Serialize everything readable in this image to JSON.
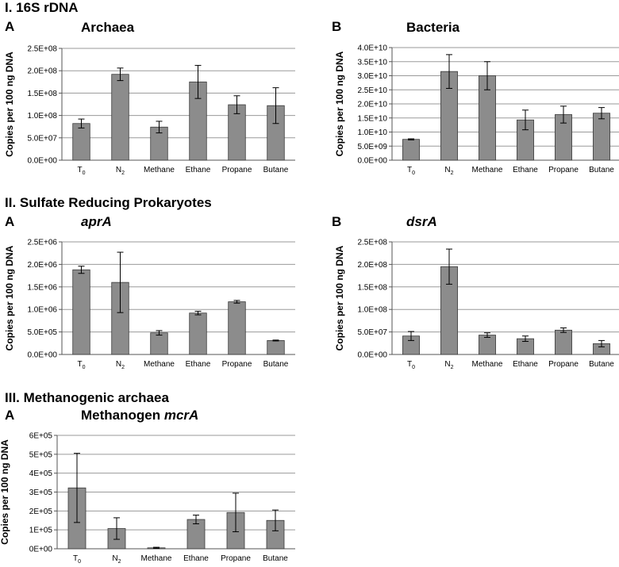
{
  "sections": [
    {
      "title": "I. 16S rDNA"
    },
    {
      "title": "II. Sulfate Reducing Prokaryotes"
    },
    {
      "title": "III. Methanogenic archaea"
    }
  ],
  "chart_data": [
    {
      "type": "bar",
      "panel": "A",
      "title": "Archaea",
      "title_italic": "",
      "ylabel": "Copies per 100 ng DNA",
      "categories": [
        "T0",
        "N2",
        "Methane",
        "Ethane",
        "Propane",
        "Butane"
      ],
      "category_labels": [
        {
          "base": "T",
          "sub": "0"
        },
        {
          "base": "N",
          "sub": "2"
        },
        {
          "base": "Methane",
          "sub": ""
        },
        {
          "base": "Ethane",
          "sub": ""
        },
        {
          "base": "Propane",
          "sub": ""
        },
        {
          "base": "Butane",
          "sub": ""
        }
      ],
      "values": [
        82000000.0,
        192000000.0,
        74000000.0,
        175000000.0,
        124000000.0,
        122000000.0
      ],
      "errors": [
        10000000.0,
        14000000.0,
        13000000.0,
        37000000.0,
        20000000.0,
        40000000.0
      ],
      "ylim": [
        0,
        250000000.0
      ],
      "yticks": [
        0,
        50000000.0,
        100000000.0,
        150000000.0,
        200000000.0,
        250000000.0
      ],
      "ytick_labels": [
        "0.0E+00",
        "5.0E+07",
        "1.0E+08",
        "1.5E+08",
        "2.0E+08",
        "2.5E+08"
      ],
      "grid": true
    },
    {
      "type": "bar",
      "panel": "B",
      "title": "Bacteria",
      "title_italic": "",
      "ylabel": "Copies per 100 ng DNA",
      "categories": [
        "T0",
        "N2",
        "Methane",
        "Ethane",
        "Propane",
        "Butane"
      ],
      "category_labels": [
        {
          "base": "T",
          "sub": "0"
        },
        {
          "base": "N",
          "sub": "2"
        },
        {
          "base": "Methane",
          "sub": ""
        },
        {
          "base": "Ethane",
          "sub": ""
        },
        {
          "base": "Propane",
          "sub": ""
        },
        {
          "base": "Butane",
          "sub": ""
        }
      ],
      "values": [
        7400000000.0,
        31500000000.0,
        30000000000.0,
        14300000000.0,
        16200000000.0,
        16700000000.0
      ],
      "errors": [
        200000000.0,
        6000000000.0,
        5000000000.0,
        3500000000.0,
        3000000000.0,
        2000000000.0
      ],
      "ylim": [
        0,
        40000000000.0
      ],
      "yticks": [
        0,
        5000000000.0,
        10000000000.0,
        15000000000.0,
        20000000000.0,
        25000000000.0,
        30000000000.0,
        35000000000.0,
        40000000000.0
      ],
      "ytick_labels": [
        "0.0E+00",
        "5.0E+09",
        "1.0E+10",
        "1.5E+10",
        "2.0E+10",
        "2.5E+10",
        "3.0E+10",
        "3.5E+10",
        "4.0E+10"
      ],
      "grid": true
    },
    {
      "type": "bar",
      "panel": "A",
      "title": "",
      "title_italic": "aprA",
      "ylabel": "Copies per 100 ng DNA",
      "categories": [
        "T0",
        "N2",
        "Methane",
        "Ethane",
        "Propane",
        "Butane"
      ],
      "category_labels": [
        {
          "base": "T",
          "sub": "0"
        },
        {
          "base": "N",
          "sub": "2"
        },
        {
          "base": "Methane",
          "sub": ""
        },
        {
          "base": "Ethane",
          "sub": ""
        },
        {
          "base": "Propane",
          "sub": ""
        },
        {
          "base": "Butane",
          "sub": ""
        }
      ],
      "values": [
        1880000.0,
        1600000.0,
        480000.0,
        920000.0,
        1170000.0,
        310000.0
      ],
      "errors": [
        80000.0,
        670000.0,
        50000.0,
        40000.0,
        30000.0,
        10000.0
      ],
      "ylim": [
        0,
        2500000.0
      ],
      "yticks": [
        0,
        500000.0,
        1000000.0,
        1500000.0,
        2000000.0,
        2500000.0
      ],
      "ytick_labels": [
        "0.0E+00",
        "5.0E+05",
        "1.0E+06",
        "1.5E+06",
        "2.0E+06",
        "2.5E+06"
      ],
      "grid": true
    },
    {
      "type": "bar",
      "panel": "B",
      "title": "",
      "title_italic": "dsrA",
      "ylabel": "Copies per 100 ng DNA",
      "categories": [
        "T0",
        "N2",
        "Methane",
        "Ethane",
        "Propane",
        "Butane"
      ],
      "category_labels": [
        {
          "base": "T",
          "sub": "0"
        },
        {
          "base": "N",
          "sub": "2"
        },
        {
          "base": "Methane",
          "sub": ""
        },
        {
          "base": "Ethane",
          "sub": ""
        },
        {
          "base": "Propane",
          "sub": ""
        },
        {
          "base": "Butane",
          "sub": ""
        }
      ],
      "values": [
        41000000.0,
        195000000.0,
        43000000.0,
        35000000.0,
        54000000.0,
        24000000.0
      ],
      "errors": [
        10000000.0,
        39000000.0,
        5000000.0,
        6000000.0,
        5000000.0,
        7000000.0
      ],
      "ylim": [
        0,
        250000000.0
      ],
      "yticks": [
        0,
        50000000.0,
        100000000.0,
        150000000.0,
        200000000.0,
        250000000.0
      ],
      "ytick_labels": [
        "0.0E+00",
        "5.0E+07",
        "1.0E+08",
        "1.5E+08",
        "2.0E+08",
        "2.5E+08"
      ],
      "grid": true
    },
    {
      "type": "bar",
      "panel": "A",
      "title": "Methanogen ",
      "title_italic": "mcrA",
      "ylabel": "Copies per 100 ng DNA",
      "categories": [
        "T0",
        "N2",
        "Methane",
        "Ethane",
        "Propane",
        "Butane"
      ],
      "category_labels": [
        {
          "base": "T",
          "sub": "0"
        },
        {
          "base": "N",
          "sub": "2"
        },
        {
          "base": "Methane",
          "sub": ""
        },
        {
          "base": "Ethane",
          "sub": ""
        },
        {
          "base": "Propane",
          "sub": ""
        },
        {
          "base": "Butane",
          "sub": ""
        }
      ],
      "values": [
        322000.0,
        107000.0,
        5000.0,
        155000.0,
        192000.0,
        150000.0
      ],
      "errors": [
        183000.0,
        57000.0,
        3000.0,
        23000.0,
        102000.0,
        55000.0
      ],
      "ylim": [
        0,
        600000.0
      ],
      "yticks": [
        0,
        100000.0,
        200000.0,
        300000.0,
        400000.0,
        500000.0,
        600000.0
      ],
      "ytick_labels": [
        "0E+00",
        "1E+05",
        "2E+05",
        "3E+05",
        "4E+05",
        "5E+05",
        "6E+05"
      ],
      "grid": true
    }
  ],
  "style": {
    "bar_fill": "#8c8c8c",
    "bar_stroke": "#3a3a3a",
    "grid": "#9a9a9a",
    "axis": "#555555"
  }
}
